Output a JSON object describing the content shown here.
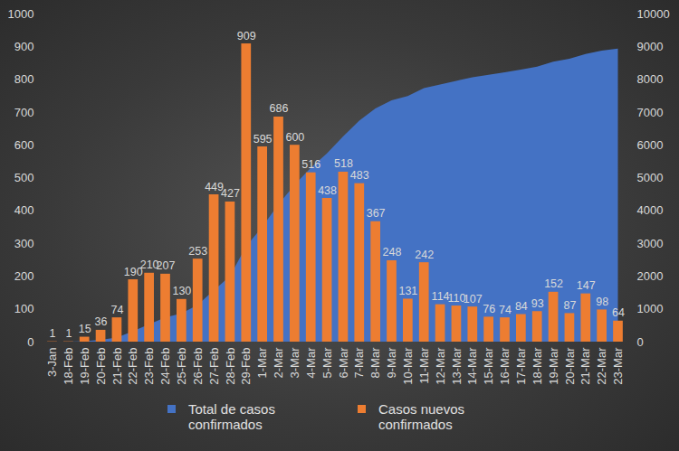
{
  "chart_data": {
    "type": "bar",
    "categories": [
      "3-Jan",
      "18-Feb",
      "19-Feb",
      "20-Feb",
      "21-Feb",
      "22-Feb",
      "23-Feb",
      "24-Feb",
      "25-Feb",
      "26-Feb",
      "27-Feb",
      "28-Feb",
      "29-Feb",
      "1-Mar",
      "2-Mar",
      "3-Mar",
      "4-Mar",
      "5-Mar",
      "6-Mar",
      "7-Mar",
      "8-Mar",
      "9-Mar",
      "10-Mar",
      "11-Mar",
      "12-Mar",
      "13-Mar",
      "14-Mar",
      "15-Mar",
      "16-Mar",
      "17-Mar",
      "18-Mar",
      "19-Mar",
      "20-Mar",
      "21-Mar",
      "22-Mar",
      "23-Mar"
    ],
    "series": [
      {
        "name": "Total de casos confirmados",
        "type": "area",
        "axis": "y2",
        "color": "#4472C4",
        "values": [
          1,
          2,
          17,
          53,
          127,
          317,
          527,
          734,
          864,
          1117,
          1566,
          1993,
          2902,
          3497,
          4183,
          4783,
          5299,
          5737,
          6255,
          6738,
          7105,
          7353,
          7484,
          7726,
          7840,
          7950,
          8057,
          8133,
          8207,
          8291,
          8384,
          8536,
          8623,
          8770,
          8868,
          8932
        ]
      },
      {
        "name": "Casos nuevos confirmados",
        "type": "bar",
        "color": "#ED7D31",
        "data_labels": true,
        "values": [
          1,
          1,
          15,
          36,
          74,
          190,
          210,
          207,
          130,
          253,
          449,
          427,
          909,
          595,
          686,
          600,
          516,
          438,
          518,
          483,
          367,
          248,
          131,
          242,
          114,
          110,
          107,
          76,
          74,
          84,
          93,
          152,
          87,
          147,
          98,
          64
        ]
      }
    ],
    "ylim": [
      0,
      1000
    ],
    "yticks": [
      0,
      100,
      200,
      300,
      400,
      500,
      600,
      700,
      800,
      900,
      1000
    ],
    "y2lim": [
      0,
      10000
    ],
    "y2ticks": [
      0,
      1000,
      2000,
      3000,
      4000,
      5000,
      6000,
      7000,
      8000,
      9000,
      10000
    ],
    "grid": false,
    "legend": "bottom"
  }
}
